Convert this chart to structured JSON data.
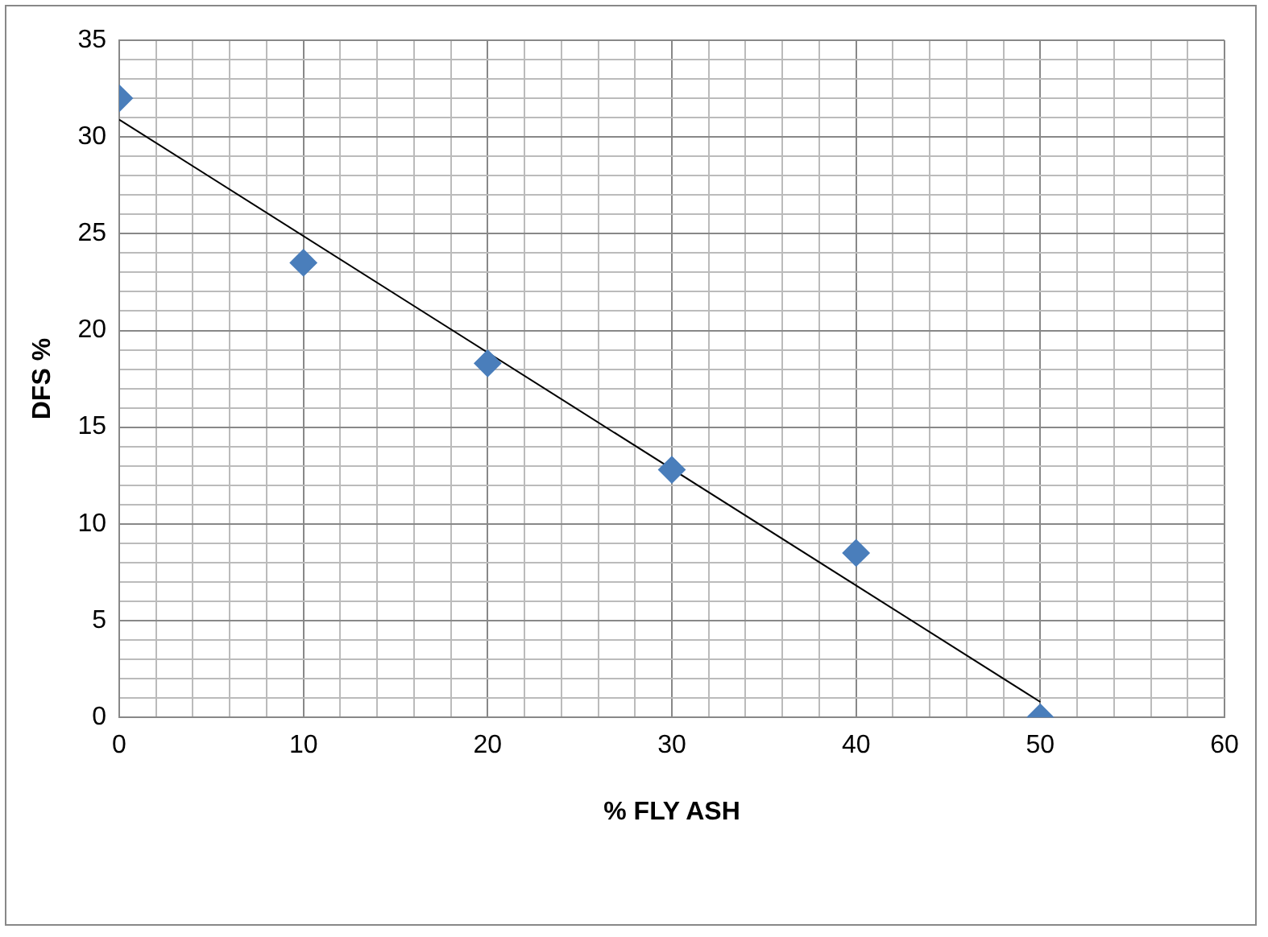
{
  "chart_data": {
    "type": "scatter",
    "xlabel": "% FLY ASH",
    "ylabel": "DFS %",
    "x": [
      0,
      10,
      20,
      30,
      40,
      50
    ],
    "series": [
      {
        "type": "scatter",
        "color": "#4a7ebb",
        "marker": "diamond",
        "values": [
          32.0,
          23.5,
          18.3,
          12.8,
          8.5,
          0
        ]
      },
      {
        "type": "line",
        "color": "#000000",
        "marker": "none",
        "x": [
          0,
          50
        ],
        "values": [
          30.9,
          0.8
        ]
      }
    ],
    "xlim": [
      0,
      60
    ],
    "ylim": [
      0,
      35
    ],
    "xticks": [
      0,
      {
        "value": 2,
        "label": null
      },
      {
        "value": 4,
        "label": null
      },
      {
        "value": 6,
        "label": null
      },
      {
        "value": 8,
        "label": null
      },
      10,
      {
        "value": 12,
        "label": null
      },
      {
        "value": 14,
        "label": null
      },
      {
        "value": 16,
        "label": null
      },
      {
        "value": 18,
        "label": null
      },
      20,
      {
        "value": 22,
        "label": null
      },
      {
        "value": 24,
        "label": null
      },
      {
        "value": 26,
        "label": null
      },
      {
        "value": 28,
        "label": null
      },
      30,
      {
        "value": 32,
        "label": null
      },
      {
        "value": 34,
        "label": null
      },
      {
        "value": 36,
        "label": null
      },
      {
        "value": 38,
        "label": null
      },
      40,
      {
        "value": 42,
        "label": null
      },
      {
        "value": 44,
        "label": null
      },
      {
        "value": 46,
        "label": null
      },
      {
        "value": 48,
        "label": null
      },
      50,
      {
        "value": 52,
        "label": null
      },
      {
        "value": 54,
        "label": null
      },
      {
        "value": 56,
        "label": null
      },
      {
        "value": 58,
        "label": null
      },
      60
    ],
    "yticks": [
      0,
      {
        "value": 1,
        "label": null
      },
      {
        "value": 2,
        "label": null
      },
      {
        "value": 3,
        "label": null
      },
      {
        "value": 4,
        "label": null
      },
      5,
      {
        "value": 6,
        "label": null
      },
      {
        "value": 7,
        "label": null
      },
      {
        "value": 8,
        "label": null
      },
      {
        "value": 9,
        "label": null
      },
      10,
      {
        "value": 11,
        "label": null
      },
      {
        "value": 12,
        "label": null
      },
      {
        "value": 13,
        "label": null
      },
      {
        "value": 14,
        "label": null
      },
      15,
      {
        "value": 16,
        "label": null
      },
      {
        "value": 17,
        "label": null
      },
      {
        "value": 18,
        "label": null
      },
      {
        "value": 19,
        "label": null
      },
      20,
      {
        "value": 21,
        "label": null
      },
      {
        "value": 22,
        "label": null
      },
      {
        "value": 23,
        "label": null
      },
      {
        "value": 24,
        "label": null
      },
      25,
      {
        "value": 26,
        "label": null
      },
      {
        "value": 27,
        "label": null
      },
      {
        "value": 28,
        "label": null
      },
      {
        "value": 29,
        "label": null
      },
      30,
      {
        "value": 31,
        "label": null
      },
      {
        "value": 32,
        "label": null
      },
      {
        "value": 33,
        "label": null
      },
      {
        "value": 34,
        "label": null
      },
      35
    ],
    "grid": true,
    "legend": false
  }
}
